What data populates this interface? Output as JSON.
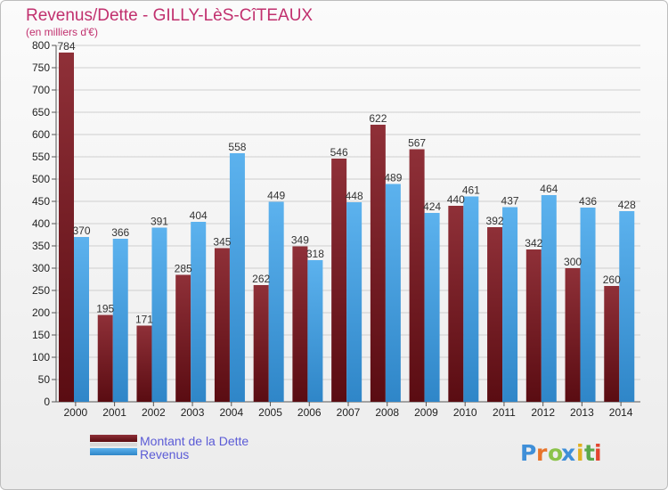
{
  "chart_data": {
    "type": "bar",
    "title": "Revenus/Dette - GILLY-LèS-CîTEAUX",
    "subtitle": "(en milliers d'€)",
    "xlabel": "",
    "ylabel": "",
    "ylim": [
      0,
      800
    ],
    "yticks": [
      0,
      50,
      100,
      150,
      200,
      250,
      300,
      350,
      400,
      450,
      500,
      550,
      600,
      650,
      700,
      750,
      800
    ],
    "categories": [
      "2000",
      "2001",
      "2002",
      "2003",
      "2004",
      "2005",
      "2006",
      "2007",
      "2008",
      "2009",
      "2010",
      "2011",
      "2012",
      "2013",
      "2014"
    ],
    "series": [
      {
        "name": "Montant de la Dette",
        "color": "#7a1820",
        "values": [
          784,
          195,
          171,
          285,
          345,
          262,
          349,
          546,
          622,
          567,
          440,
          392,
          342,
          300,
          260
        ],
        "labels": [
          "784",
          "195",
          "171",
          "285",
          "345",
          "262",
          "349",
          "546",
          "622",
          "567",
          "440",
          "392",
          "342",
          "300",
          "260"
        ]
      },
      {
        "name": "Revenus",
        "color": "#4aa6e6",
        "values": [
          370,
          366,
          391,
          404,
          558,
          449,
          318,
          448,
          489,
          424,
          461,
          437,
          464,
          436,
          428
        ],
        "labels": [
          "370",
          "366",
          "391",
          "404",
          "558",
          "449",
          "318",
          "448",
          "489",
          "424",
          "461",
          "437",
          "464",
          "436",
          "428"
        ]
      }
    ],
    "grid": true,
    "legend_position": "bottom-left"
  },
  "logo": {
    "letters": [
      "P",
      "r",
      "o",
      "x",
      "i",
      "t",
      "i"
    ],
    "colors": [
      "#3f8fd8",
      "#e8742a",
      "#8bc34a",
      "#3f8fd8",
      "#e0b020",
      "#5aa84a",
      "#e2452f"
    ]
  }
}
